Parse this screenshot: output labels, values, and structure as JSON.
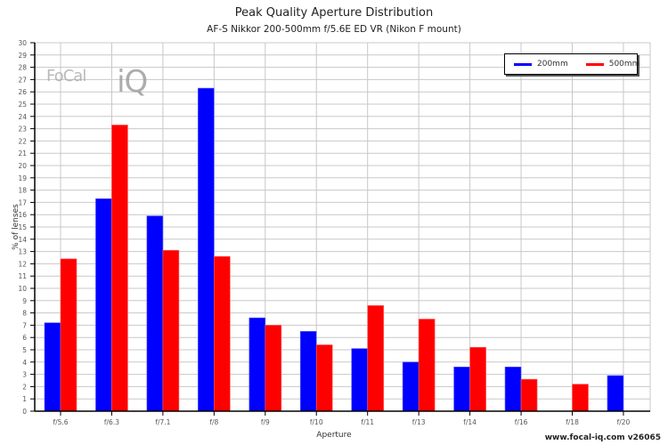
{
  "header": {
    "title": "Peak Quality Aperture Distribution",
    "subtitle": "AF-S Nikkor 200-500mm f/5.6E ED VR (Nikon F mount)"
  },
  "logo": {
    "text": "FoCal",
    "mark": "iQ"
  },
  "footer": {
    "text": "www.focal-iq.com  v26065"
  },
  "colors": {
    "series_200": "#0000ff",
    "series_500": "#ff0000",
    "grid": "#c8c8c8",
    "axis": "#000000"
  },
  "chart_data": {
    "type": "bar",
    "title": "Peak Quality Aperture Distribution",
    "subtitle": "AF-S Nikkor 200-500mm f/5.6E ED VR (Nikon F mount)",
    "xlabel": "Aperture",
    "ylabel": "% of lenses",
    "ylim": [
      0,
      30
    ],
    "yticks": [
      0,
      1,
      2,
      3,
      4,
      5,
      6,
      7,
      8,
      9,
      10,
      11,
      12,
      13,
      14,
      15,
      16,
      17,
      18,
      19,
      20,
      21,
      22,
      23,
      24,
      25,
      26,
      27,
      28,
      29,
      30
    ],
    "grid": true,
    "legend_position": "top-right",
    "categories": [
      "f/5.6",
      "f/6.3",
      "f/7.1",
      "f/8",
      "f/9",
      "f/10",
      "f/11",
      "f/13",
      "f/14",
      "f/16",
      "f/18",
      "f/20"
    ],
    "series": [
      {
        "name": "200mm",
        "color": "#0000ff",
        "values": [
          7.2,
          17.3,
          15.9,
          26.3,
          7.6,
          6.5,
          5.1,
          4.0,
          3.6,
          3.6,
          0,
          2.9
        ]
      },
      {
        "name": "500mm",
        "color": "#ff0000",
        "values": [
          12.4,
          23.3,
          13.1,
          12.6,
          7.0,
          5.4,
          8.6,
          7.5,
          5.2,
          2.6,
          2.2,
          0
        ]
      }
    ]
  },
  "legend": {
    "items": [
      {
        "label": "200mm"
      },
      {
        "label": "500mm"
      }
    ]
  }
}
